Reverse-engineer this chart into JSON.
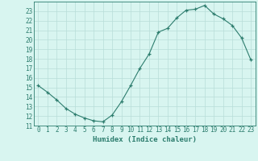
{
  "x": [
    0,
    1,
    2,
    3,
    4,
    5,
    6,
    7,
    8,
    9,
    10,
    11,
    12,
    13,
    14,
    15,
    16,
    17,
    18,
    19,
    20,
    21,
    22,
    23
  ],
  "y": [
    15.2,
    14.5,
    13.7,
    12.8,
    12.2,
    11.8,
    11.5,
    11.4,
    12.1,
    13.5,
    15.2,
    17.0,
    18.5,
    20.8,
    21.2,
    22.3,
    23.1,
    23.2,
    23.6,
    22.7,
    22.2,
    21.5,
    20.2,
    17.9
  ],
  "xlabel": "Humidex (Indice chaleur)",
  "xlim": [
    -0.5,
    23.5
  ],
  "ylim": [
    11,
    24
  ],
  "yticks": [
    11,
    12,
    13,
    14,
    15,
    16,
    17,
    18,
    19,
    20,
    21,
    22,
    23
  ],
  "xticks": [
    0,
    1,
    2,
    3,
    4,
    5,
    6,
    7,
    8,
    9,
    10,
    11,
    12,
    13,
    14,
    15,
    16,
    17,
    18,
    19,
    20,
    21,
    22,
    23
  ],
  "line_color": "#2d7d6e",
  "marker": "+",
  "bg_color": "#d8f5f0",
  "grid_color": "#b8ddd8",
  "label_fontsize": 6.5,
  "tick_fontsize": 5.5
}
